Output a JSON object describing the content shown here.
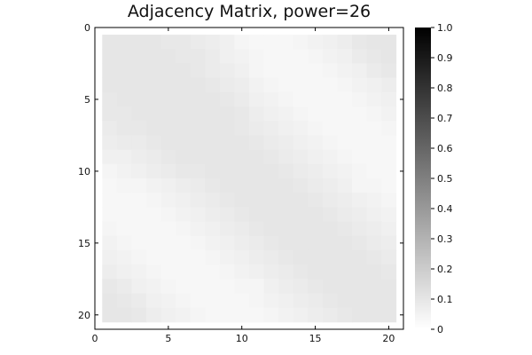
{
  "chart_data": {
    "type": "heatmap",
    "title": "Adjacency Matrix, power=26",
    "xlabel": "",
    "ylabel": "",
    "xlim": [
      0,
      21
    ],
    "ylim": [
      0,
      21
    ],
    "y_inverted": true,
    "x_ticks": [
      "0",
      "5",
      "10",
      "15",
      "20"
    ],
    "y_ticks": [
      "0",
      "5",
      "10",
      "15",
      "20"
    ],
    "colorbar": {
      "min": 0,
      "max": 1,
      "ticks": [
        "0",
        "0.1",
        "0.2",
        "0.3",
        "0.4",
        "0.5",
        "0.6",
        "0.7",
        "0.8",
        "0.9",
        "1.0"
      ],
      "colormap": "white-to-black"
    },
    "grid": false,
    "matrix_size": 20,
    "values": [
      [
        0.1,
        0.1,
        0.1,
        0.1,
        0.09,
        0.09,
        0.08,
        0.07,
        0.06,
        0.04,
        0.03,
        0.03,
        0.03,
        0.04,
        0.05,
        0.06,
        0.07,
        0.09,
        0.1,
        0.1
      ],
      [
        0.1,
        0.1,
        0.1,
        0.1,
        0.1,
        0.09,
        0.09,
        0.08,
        0.06,
        0.05,
        0.04,
        0.03,
        0.03,
        0.03,
        0.04,
        0.05,
        0.06,
        0.08,
        0.09,
        0.1
      ],
      [
        0.1,
        0.1,
        0.1,
        0.1,
        0.1,
        0.1,
        0.09,
        0.08,
        0.07,
        0.06,
        0.04,
        0.03,
        0.03,
        0.03,
        0.03,
        0.04,
        0.05,
        0.06,
        0.08,
        0.09
      ],
      [
        0.1,
        0.1,
        0.1,
        0.1,
        0.1,
        0.1,
        0.1,
        0.09,
        0.08,
        0.07,
        0.05,
        0.04,
        0.03,
        0.03,
        0.03,
        0.03,
        0.04,
        0.05,
        0.06,
        0.07
      ],
      [
        0.09,
        0.1,
        0.1,
        0.1,
        0.1,
        0.1,
        0.1,
        0.1,
        0.09,
        0.08,
        0.06,
        0.05,
        0.04,
        0.03,
        0.03,
        0.03,
        0.03,
        0.04,
        0.05,
        0.06
      ],
      [
        0.09,
        0.09,
        0.1,
        0.1,
        0.1,
        0.1,
        0.1,
        0.1,
        0.1,
        0.09,
        0.07,
        0.06,
        0.05,
        0.04,
        0.03,
        0.03,
        0.03,
        0.03,
        0.04,
        0.05
      ],
      [
        0.08,
        0.09,
        0.09,
        0.1,
        0.1,
        0.1,
        0.1,
        0.1,
        0.1,
        0.09,
        0.08,
        0.07,
        0.06,
        0.05,
        0.04,
        0.03,
        0.03,
        0.03,
        0.03,
        0.04
      ],
      [
        0.07,
        0.08,
        0.08,
        0.09,
        0.1,
        0.1,
        0.1,
        0.1,
        0.1,
        0.1,
        0.09,
        0.08,
        0.07,
        0.06,
        0.05,
        0.04,
        0.03,
        0.03,
        0.03,
        0.03
      ],
      [
        0.06,
        0.06,
        0.07,
        0.08,
        0.09,
        0.1,
        0.1,
        0.1,
        0.1,
        0.1,
        0.1,
        0.09,
        0.08,
        0.07,
        0.06,
        0.05,
        0.04,
        0.03,
        0.03,
        0.03
      ],
      [
        0.04,
        0.05,
        0.06,
        0.07,
        0.08,
        0.09,
        0.09,
        0.1,
        0.1,
        0.1,
        0.1,
        0.1,
        0.09,
        0.08,
        0.07,
        0.06,
        0.05,
        0.04,
        0.03,
        0.03
      ],
      [
        0.03,
        0.04,
        0.04,
        0.05,
        0.06,
        0.07,
        0.08,
        0.09,
        0.1,
        0.1,
        0.1,
        0.1,
        0.1,
        0.09,
        0.08,
        0.07,
        0.06,
        0.04,
        0.04,
        0.03
      ],
      [
        0.03,
        0.03,
        0.03,
        0.04,
        0.05,
        0.06,
        0.07,
        0.08,
        0.09,
        0.1,
        0.1,
        0.1,
        0.1,
        0.1,
        0.09,
        0.08,
        0.07,
        0.06,
        0.05,
        0.04
      ],
      [
        0.03,
        0.03,
        0.03,
        0.03,
        0.04,
        0.05,
        0.06,
        0.07,
        0.08,
        0.09,
        0.1,
        0.1,
        0.1,
        0.1,
        0.1,
        0.09,
        0.08,
        0.07,
        0.06,
        0.05
      ],
      [
        0.04,
        0.03,
        0.03,
        0.03,
        0.03,
        0.04,
        0.05,
        0.06,
        0.07,
        0.08,
        0.09,
        0.1,
        0.1,
        0.1,
        0.1,
        0.1,
        0.09,
        0.08,
        0.07,
        0.06
      ],
      [
        0.05,
        0.04,
        0.03,
        0.03,
        0.03,
        0.03,
        0.04,
        0.05,
        0.06,
        0.07,
        0.08,
        0.09,
        0.1,
        0.1,
        0.1,
        0.1,
        0.1,
        0.09,
        0.08,
        0.07
      ],
      [
        0.06,
        0.05,
        0.04,
        0.03,
        0.03,
        0.03,
        0.03,
        0.04,
        0.05,
        0.06,
        0.07,
        0.08,
        0.09,
        0.1,
        0.1,
        0.1,
        0.1,
        0.1,
        0.09,
        0.08
      ],
      [
        0.07,
        0.06,
        0.05,
        0.04,
        0.03,
        0.03,
        0.03,
        0.03,
        0.04,
        0.05,
        0.06,
        0.07,
        0.08,
        0.09,
        0.1,
        0.1,
        0.1,
        0.1,
        0.1,
        0.09
      ],
      [
        0.09,
        0.08,
        0.06,
        0.05,
        0.04,
        0.03,
        0.03,
        0.03,
        0.03,
        0.04,
        0.04,
        0.06,
        0.07,
        0.08,
        0.09,
        0.1,
        0.1,
        0.1,
        0.1,
        0.1
      ],
      [
        0.1,
        0.09,
        0.08,
        0.06,
        0.05,
        0.04,
        0.03,
        0.03,
        0.03,
        0.03,
        0.04,
        0.05,
        0.06,
        0.07,
        0.08,
        0.09,
        0.1,
        0.1,
        0.1,
        0.1
      ],
      [
        0.1,
        0.1,
        0.09,
        0.07,
        0.06,
        0.05,
        0.04,
        0.03,
        0.03,
        0.03,
        0.03,
        0.04,
        0.05,
        0.06,
        0.07,
        0.08,
        0.09,
        0.1,
        0.1,
        0.1
      ]
    ]
  }
}
